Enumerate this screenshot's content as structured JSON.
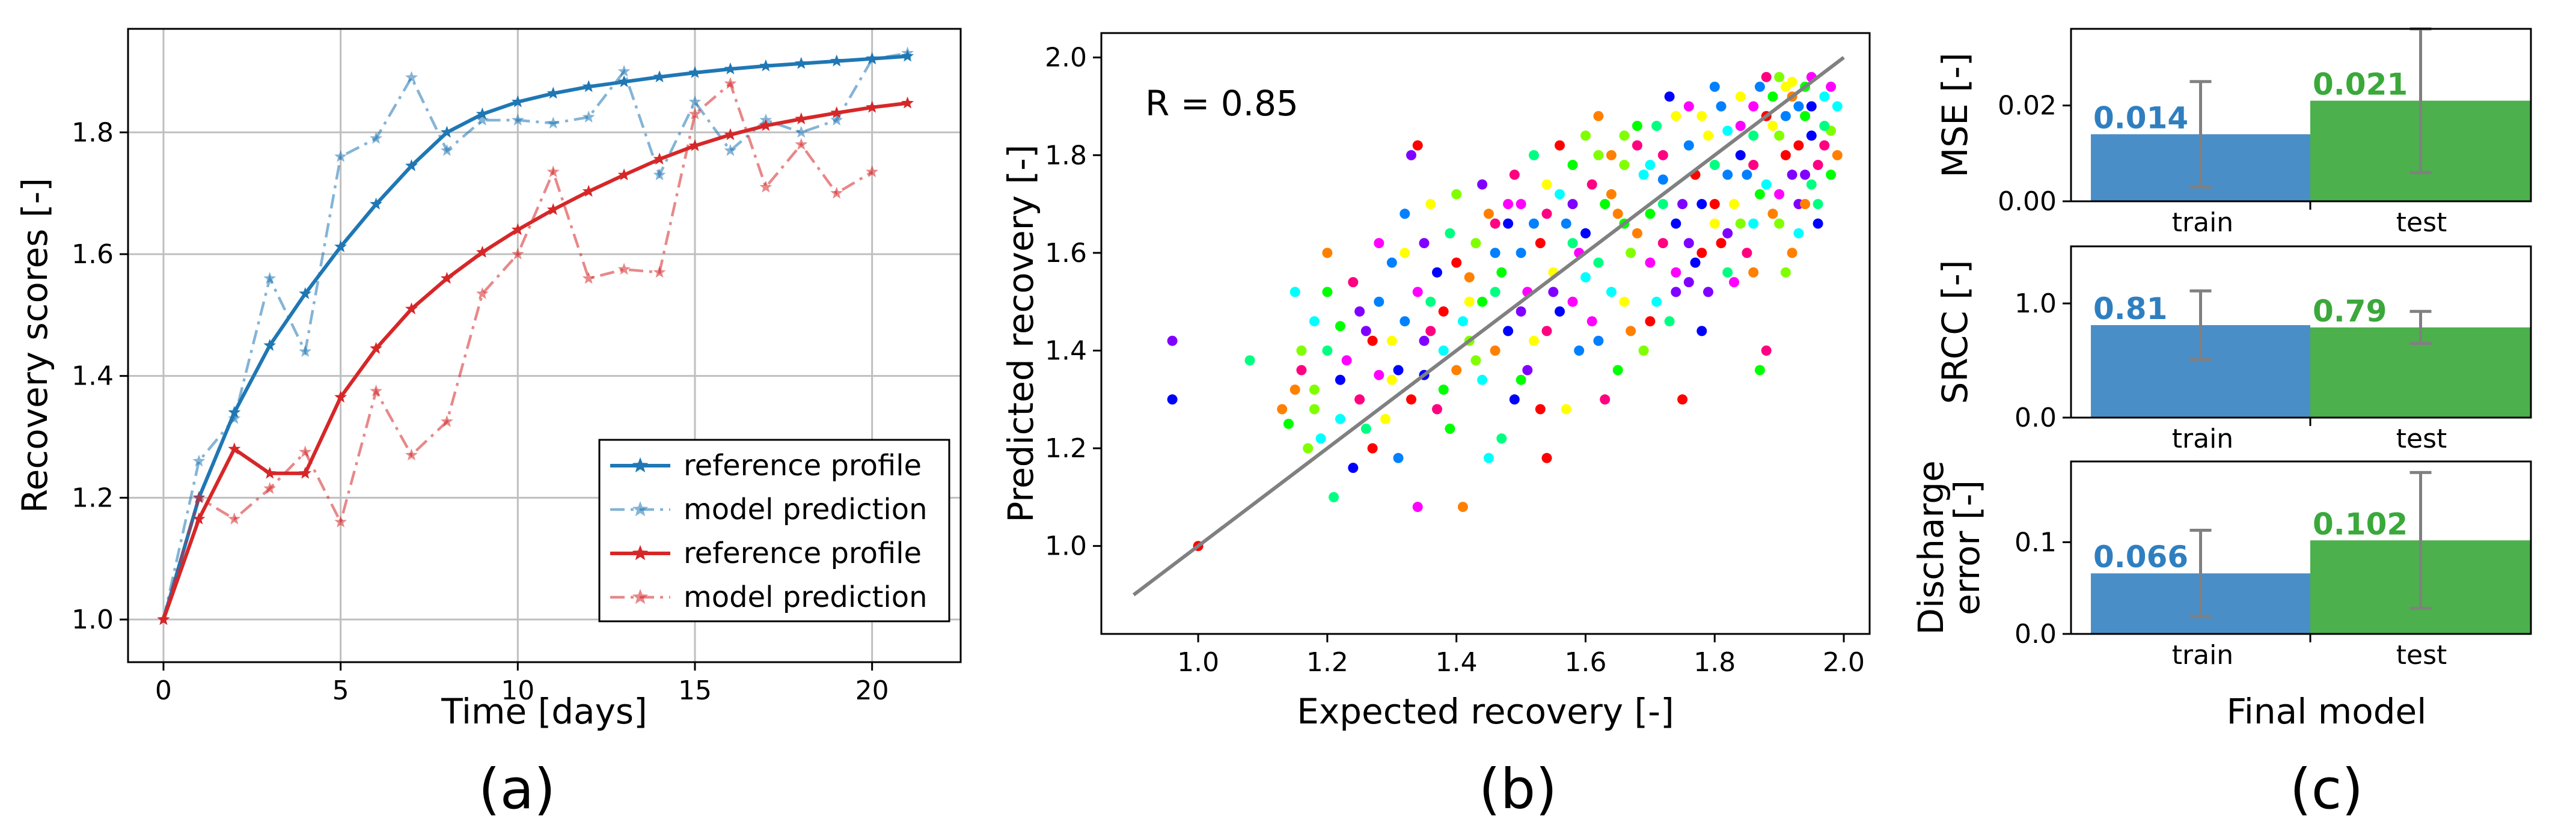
{
  "chart_data": [
    {
      "type": "line",
      "panel": "(a)",
      "xlabel": "Time [days]",
      "ylabel": "Recovery scores [-]",
      "xlim": [
        -1,
        22.5
      ],
      "ylim": [
        0.93,
        1.97
      ],
      "xticks": [
        0,
        5,
        10,
        15,
        20
      ],
      "yticks": [
        1.0,
        1.2,
        1.4,
        1.6,
        1.8
      ],
      "grid": true,
      "legend_position": "bottom-right",
      "series": [
        {
          "name": "reference profile",
          "color": "#1f77b4",
          "style": "solid",
          "marker": "star",
          "x": [
            0,
            1,
            2,
            3,
            4,
            5,
            6,
            7,
            8,
            9,
            10,
            11,
            12,
            13,
            14,
            15,
            16,
            17,
            18,
            19,
            20,
            21
          ],
          "y": [
            1.0,
            1.2,
            1.34,
            1.45,
            1.535,
            1.612,
            1.682,
            1.745,
            1.8,
            1.83,
            1.85,
            1.864,
            1.875,
            1.883,
            1.891,
            1.898,
            1.904,
            1.909,
            1.913,
            1.917,
            1.921,
            1.925
          ]
        },
        {
          "name": "model prediction",
          "color": "#1f77b4",
          "style": "dashdot",
          "marker": "star",
          "alpha": 0.55,
          "x": [
            0,
            1,
            2,
            3,
            4,
            5,
            6,
            7,
            8,
            9,
            10,
            11,
            12,
            13,
            14,
            15,
            16,
            17,
            18,
            19,
            20,
            21
          ],
          "y": [
            1.0,
            1.26,
            1.33,
            1.56,
            1.44,
            1.76,
            1.79,
            1.89,
            1.77,
            1.82,
            1.82,
            1.815,
            1.825,
            1.9,
            1.73,
            1.85,
            1.77,
            1.82,
            1.8,
            1.82,
            1.92,
            1.93
          ]
        },
        {
          "name": "reference profile",
          "color": "#d62728",
          "style": "solid",
          "marker": "star",
          "x": [
            0,
            1,
            2,
            3,
            4,
            5,
            6,
            7,
            8,
            9,
            10,
            11,
            12,
            13,
            14,
            15,
            16,
            17,
            18,
            19,
            20,
            21
          ],
          "y": [
            1.0,
            1.165,
            1.28,
            1.24,
            1.24,
            1.365,
            1.445,
            1.51,
            1.56,
            1.603,
            1.64,
            1.673,
            1.703,
            1.73,
            1.756,
            1.778,
            1.796,
            1.811,
            1.822,
            1.832,
            1.841,
            1.848
          ]
        },
        {
          "name": "model prediction",
          "color": "#d62728",
          "style": "dashdot",
          "marker": "star",
          "alpha": 0.55,
          "x": [
            0,
            1,
            2,
            3,
            4,
            5,
            6,
            7,
            8,
            9,
            10,
            11,
            12,
            13,
            14,
            15,
            16,
            17,
            18,
            19,
            20
          ],
          "y": [
            1.0,
            1.2,
            1.165,
            1.215,
            1.275,
            1.16,
            1.375,
            1.27,
            1.325,
            1.535,
            1.6,
            1.735,
            1.56,
            1.575,
            1.57,
            1.83,
            1.88,
            1.71,
            1.78,
            1.7,
            1.735
          ]
        }
      ]
    },
    {
      "type": "scatter",
      "panel": "(b)",
      "xlabel": "Expected recovery [-]",
      "ylabel": "Predicted recovery [-]",
      "xlim": [
        0.85,
        2.04
      ],
      "ylim": [
        0.82,
        2.05
      ],
      "xticks": [
        1.0,
        1.2,
        1.4,
        1.6,
        1.8,
        2.0
      ],
      "yticks": [
        1.0,
        1.2,
        1.4,
        1.6,
        1.8,
        2.0
      ],
      "annotation": "R = 0.85",
      "fit_line": {
        "x": [
          0.9,
          2.0
        ],
        "y": [
          0.9,
          2.0
        ],
        "color": "#808080"
      },
      "marker_colors": [
        "#ff0000",
        "#00ff00",
        "#0000ff",
        "#ff00ff",
        "#00ffff",
        "#ffff00",
        "#ff8000",
        "#8000ff",
        "#ff0080",
        "#00ff80",
        "#0080ff",
        "#80ff00"
      ],
      "points": [
        [
          1.0,
          1.0
        ],
        [
          0.96,
          1.42
        ],
        [
          0.96,
          1.3
        ],
        [
          1.08,
          1.38
        ],
        [
          1.15,
          1.52
        ],
        [
          1.18,
          1.28
        ],
        [
          1.2,
          1.6
        ],
        [
          1.22,
          1.45
        ],
        [
          1.25,
          1.3
        ],
        [
          1.28,
          1.35
        ],
        [
          1.3,
          1.58
        ],
        [
          1.32,
          1.6
        ],
        [
          1.34,
          1.82
        ],
        [
          1.33,
          1.8
        ],
        [
          1.35,
          1.35
        ],
        [
          1.36,
          1.5
        ],
        [
          1.38,
          1.4
        ],
        [
          1.4,
          1.72
        ],
        [
          1.42,
          1.55
        ],
        [
          1.44,
          1.5
        ],
        [
          1.46,
          1.66
        ],
        [
          1.48,
          1.7
        ],
        [
          1.5,
          1.6
        ],
        [
          1.52,
          1.42
        ],
        [
          1.54,
          1.18
        ],
        [
          1.55,
          1.52
        ],
        [
          1.56,
          1.48
        ],
        [
          1.58,
          1.62
        ],
        [
          1.6,
          1.55
        ],
        [
          1.62,
          1.8
        ],
        [
          1.64,
          1.72
        ],
        [
          1.66,
          1.66
        ],
        [
          1.68,
          1.82
        ],
        [
          1.7,
          1.58
        ],
        [
          1.72,
          1.75
        ],
        [
          1.74,
          1.88
        ],
        [
          1.75,
          1.3
        ],
        [
          1.76,
          1.62
        ],
        [
          1.78,
          1.7
        ],
        [
          1.8,
          1.78
        ],
        [
          1.82,
          1.85
        ],
        [
          1.84,
          1.66
        ],
        [
          1.86,
          1.56
        ],
        [
          1.87,
          1.36
        ],
        [
          1.88,
          1.4
        ],
        [
          1.9,
          1.72
        ],
        [
          1.91,
          1.88
        ],
        [
          1.92,
          1.95
        ],
        [
          1.93,
          1.82
        ],
        [
          1.94,
          1.76
        ],
        [
          1.95,
          1.9
        ],
        [
          1.96,
          1.7
        ],
        [
          1.97,
          1.92
        ],
        [
          1.98,
          1.85
        ],
        [
          1.99,
          1.8
        ],
        [
          1.89,
          1.92
        ],
        [
          1.88,
          1.96
        ],
        [
          1.86,
          1.9
        ],
        [
          1.85,
          1.76
        ],
        [
          1.83,
          1.7
        ],
        [
          1.81,
          1.62
        ],
        [
          1.79,
          1.52
        ],
        [
          1.77,
          1.58
        ],
        [
          1.73,
          1.46
        ],
        [
          1.71,
          1.5
        ],
        [
          1.69,
          1.4
        ],
        [
          1.67,
          1.44
        ],
        [
          1.65,
          1.36
        ],
        [
          1.63,
          1.3
        ],
        [
          1.61,
          1.46
        ],
        [
          1.59,
          1.4
        ],
        [
          1.57,
          1.28
        ],
        [
          1.53,
          1.28
        ],
        [
          1.51,
          1.36
        ],
        [
          1.49,
          1.3
        ],
        [
          1.47,
          1.22
        ],
        [
          1.45,
          1.18
        ],
        [
          1.43,
          1.38
        ],
        [
          1.41,
          1.08
        ],
        [
          1.39,
          1.24
        ],
        [
          1.37,
          1.28
        ],
        [
          1.34,
          1.08
        ],
        [
          1.31,
          1.18
        ],
        [
          1.29,
          1.26
        ],
        [
          1.27,
          1.2
        ],
        [
          1.26,
          1.44
        ],
        [
          1.24,
          1.16
        ],
        [
          1.21,
          1.1
        ],
        [
          1.19,
          1.22
        ],
        [
          1.17,
          1.2
        ],
        [
          1.15,
          1.32
        ],
        [
          1.14,
          1.25
        ],
        [
          1.16,
          1.36
        ],
        [
          1.23,
          1.38
        ],
        [
          1.28,
          1.5
        ],
        [
          1.3,
          1.42
        ],
        [
          1.33,
          1.3
        ],
        [
          1.35,
          1.62
        ],
        [
          1.37,
          1.56
        ],
        [
          1.39,
          1.64
        ],
        [
          1.41,
          1.46
        ],
        [
          1.43,
          1.62
        ],
        [
          1.45,
          1.68
        ],
        [
          1.47,
          1.56
        ],
        [
          1.49,
          1.76
        ],
        [
          1.51,
          1.52
        ],
        [
          1.52,
          1.66
        ],
        [
          1.54,
          1.74
        ],
        [
          1.56,
          1.82
        ],
        [
          1.58,
          1.7
        ],
        [
          1.6,
          1.64
        ],
        [
          1.62,
          1.58
        ],
        [
          1.64,
          1.52
        ],
        [
          1.66,
          1.78
        ],
        [
          1.68,
          1.64
        ],
        [
          1.7,
          1.68
        ],
        [
          1.72,
          1.62
        ],
        [
          1.74,
          1.56
        ],
        [
          1.76,
          1.82
        ],
        [
          1.78,
          1.88
        ],
        [
          1.8,
          1.7
        ],
        [
          1.82,
          1.64
        ],
        [
          1.84,
          1.8
        ],
        [
          1.86,
          1.84
        ],
        [
          1.88,
          1.74
        ],
        [
          1.9,
          1.66
        ],
        [
          1.92,
          1.6
        ],
        [
          1.94,
          1.88
        ],
        [
          1.96,
          1.78
        ],
        [
          1.98,
          1.94
        ],
        [
          1.87,
          1.94
        ],
        [
          1.89,
          1.86
        ],
        [
          1.91,
          1.8
        ],
        [
          1.93,
          1.7
        ],
        [
          1.95,
          1.84
        ],
        [
          1.97,
          1.86
        ],
        [
          1.99,
          1.9
        ],
        [
          1.9,
          1.96
        ],
        [
          1.92,
          1.92
        ],
        [
          1.94,
          1.94
        ],
        [
          1.85,
          1.6
        ],
        [
          1.83,
          1.54
        ],
        [
          1.81,
          1.9
        ],
        [
          1.79,
          1.84
        ],
        [
          1.77,
          1.76
        ],
        [
          1.75,
          1.7
        ],
        [
          1.73,
          1.92
        ],
        [
          1.71,
          1.86
        ],
        [
          1.69,
          1.76
        ],
        [
          1.67,
          1.6
        ],
        [
          1.65,
          1.68
        ],
        [
          1.63,
          1.7
        ],
        [
          1.61,
          1.74
        ],
        [
          1.59,
          1.6
        ],
        [
          1.57,
          1.66
        ],
        [
          1.55,
          1.56
        ],
        [
          1.53,
          1.62
        ],
        [
          1.5,
          1.48
        ],
        [
          1.48,
          1.44
        ],
        [
          1.46,
          1.52
        ],
        [
          1.44,
          1.34
        ],
        [
          1.42,
          1.42
        ],
        [
          1.4,
          1.36
        ],
        [
          1.38,
          1.32
        ],
        [
          1.36,
          1.44
        ],
        [
          1.34,
          1.52
        ],
        [
          1.32,
          1.46
        ],
        [
          1.3,
          1.34
        ],
        [
          1.27,
          1.42
        ],
        [
          1.25,
          1.48
        ],
        [
          1.22,
          1.34
        ],
        [
          1.2,
          1.4
        ],
        [
          1.18,
          1.46
        ],
        [
          1.16,
          1.4
        ],
        [
          1.13,
          1.28
        ],
        [
          1.2,
          1.52
        ],
        [
          1.24,
          1.54
        ],
        [
          1.28,
          1.62
        ],
        [
          1.32,
          1.68
        ],
        [
          1.36,
          1.7
        ],
        [
          1.4,
          1.58
        ],
        [
          1.44,
          1.74
        ],
        [
          1.48,
          1.66
        ],
        [
          1.52,
          1.8
        ],
        [
          1.56,
          1.72
        ],
        [
          1.6,
          1.84
        ],
        [
          1.64,
          1.8
        ],
        [
          1.68,
          1.86
        ],
        [
          1.72,
          1.8
        ],
        [
          1.76,
          1.9
        ],
        [
          1.8,
          1.94
        ],
        [
          1.84,
          1.92
        ],
        [
          1.88,
          1.88
        ],
        [
          1.92,
          1.76
        ],
        [
          1.96,
          1.66
        ],
        [
          1.95,
          1.74
        ],
        [
          1.93,
          1.64
        ],
        [
          1.91,
          1.56
        ],
        [
          1.89,
          1.68
        ],
        [
          1.87,
          1.72
        ],
        [
          1.86,
          1.78
        ],
        [
          1.84,
          1.86
        ],
        [
          1.82,
          1.76
        ],
        [
          1.8,
          1.66
        ],
        [
          1.78,
          1.6
        ],
        [
          1.76,
          1.54
        ],
        [
          1.74,
          1.66
        ],
        [
          1.72,
          1.7
        ],
        [
          1.7,
          1.78
        ],
        [
          1.66,
          1.84
        ],
        [
          1.62,
          1.88
        ],
        [
          1.58,
          1.78
        ],
        [
          1.54,
          1.68
        ],
        [
          1.5,
          1.7
        ],
        [
          1.46,
          1.6
        ],
        [
          1.42,
          1.5
        ],
        [
          1.38,
          1.48
        ],
        [
          1.35,
          1.42
        ],
        [
          1.31,
          1.36
        ],
        [
          1.26,
          1.24
        ],
        [
          1.22,
          1.26
        ],
        [
          1.18,
          1.32
        ],
        [
          1.46,
          1.4
        ],
        [
          1.5,
          1.34
        ],
        [
          1.54,
          1.44
        ],
        [
          1.58,
          1.5
        ],
        [
          1.62,
          1.42
        ],
        [
          1.66,
          1.5
        ],
        [
          1.7,
          1.46
        ],
        [
          1.74,
          1.52
        ],
        [
          1.78,
          1.44
        ],
        [
          1.82,
          1.56
        ],
        [
          1.86,
          1.66
        ],
        [
          1.9,
          1.84
        ],
        [
          1.94,
          1.7
        ],
        [
          1.98,
          1.76
        ],
        [
          1.97,
          1.82
        ],
        [
          1.95,
          1.96
        ],
        [
          1.93,
          1.9
        ],
        [
          1.91,
          1.94
        ]
      ]
    },
    {
      "type": "bar",
      "panel": "(c)",
      "xlabel": "Final model",
      "categories": [
        "train",
        "test"
      ],
      "colors": [
        "#4a8ec7",
        "#4cb04c"
      ],
      "subplots": [
        {
          "ylabel": "MSE [-]",
          "values": [
            0.014,
            0.021
          ],
          "value_labels": [
            "0.014",
            "0.021"
          ],
          "errors": [
            0.011,
            0.015
          ],
          "ylim": [
            0.0,
            0.036
          ],
          "yticks": [
            0.0,
            0.02
          ],
          "yticklabels": [
            "0.00",
            "0.02"
          ]
        },
        {
          "ylabel": "SRCC [-]",
          "values": [
            0.81,
            0.79
          ],
          "value_labels": [
            "0.81",
            "0.79"
          ],
          "errors": [
            0.3,
            0.14
          ],
          "ylim": [
            0.0,
            1.5
          ],
          "yticks": [
            0.0,
            1.0
          ],
          "yticklabels": [
            "0.0",
            "1.0"
          ]
        },
        {
          "ylabel": "Discharge error [-]",
          "ylabel_lines": [
            "Discharge",
            "error [-]"
          ],
          "values": [
            0.066,
            0.102
          ],
          "value_labels": [
            "0.066",
            "0.102"
          ],
          "errors": [
            0.047,
            0.074
          ],
          "ylim": [
            0.0,
            0.188
          ],
          "yticks": [
            0.0,
            0.1
          ],
          "yticklabels": [
            "0.0",
            "0.1"
          ]
        }
      ]
    }
  ],
  "panel_labels": [
    "(a)",
    "(b)",
    "(c)"
  ]
}
